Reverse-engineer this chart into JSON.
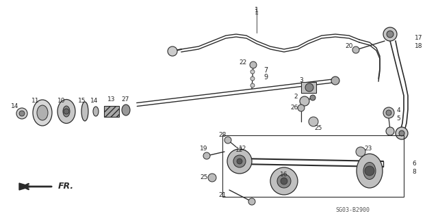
{
  "bg_color": "#ffffff",
  "fig_width": 6.4,
  "fig_height": 3.19,
  "dpi": 100,
  "diagram_code": "SG03-B2900",
  "fr_label": "FR.",
  "line_color": "#2a2a2a",
  "label_color": "#222222"
}
